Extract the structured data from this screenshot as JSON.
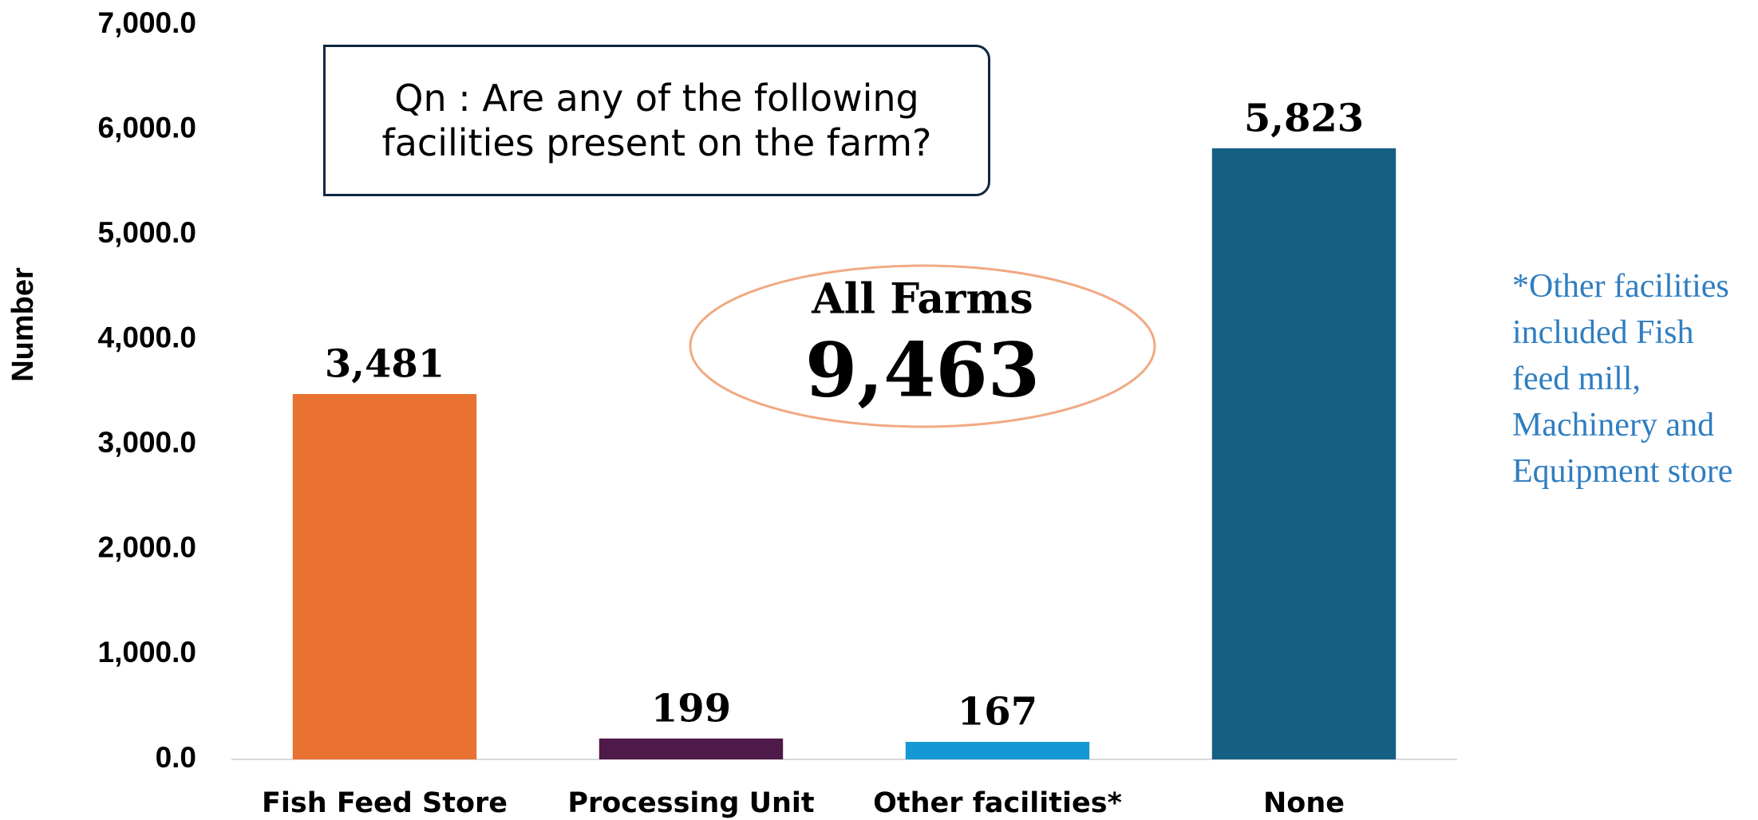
{
  "chart_data": {
    "type": "bar",
    "y_label": "Number",
    "categories": [
      "Fish Feed Store",
      "Processing Unit",
      "Other facilities*",
      "None"
    ],
    "values": [
      3481,
      199,
      167,
      5823
    ],
    "value_labels": [
      "3,481",
      "199",
      "167",
      "5,823"
    ],
    "colors": [
      "#e97132",
      "#4e1a4a",
      "#1599d4",
      "#156082"
    ],
    "ylim": [
      0,
      7000
    ],
    "yticks": [
      {
        "value": 0,
        "label": "0.0"
      },
      {
        "value": 1000,
        "label": "1,000.0"
      },
      {
        "value": 2000,
        "label": "2,000.0"
      },
      {
        "value": 3000,
        "label": "3,000.0"
      },
      {
        "value": 4000,
        "label": "4,000.0"
      },
      {
        "value": 5000,
        "label": "5,000.0"
      },
      {
        "value": 6000,
        "label": "6,000.0"
      },
      {
        "value": 7000,
        "label": "7,000.0"
      }
    ],
    "grid": false,
    "question": "Qn : Are any of the following facilities present on the farm?",
    "total_label": "All Farms",
    "total_value": "9,463",
    "footnote": "*Other facilities included Fish feed mill, Machinery and Equipment store"
  }
}
